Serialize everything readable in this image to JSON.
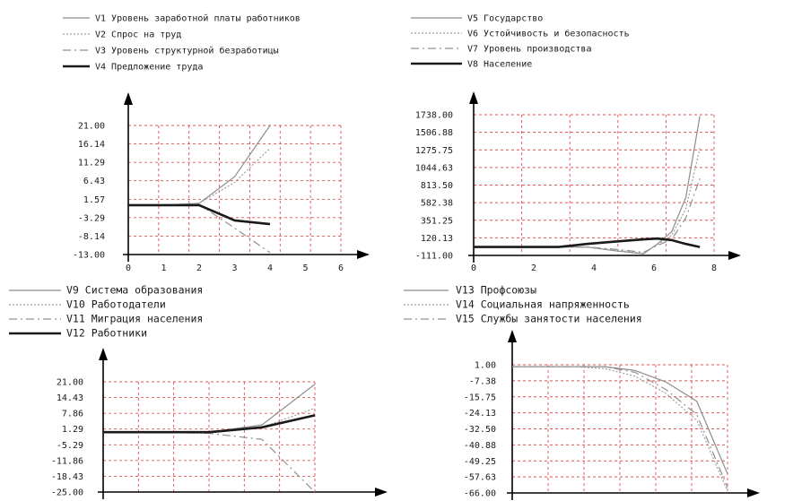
{
  "colors": {
    "grid": "#e05050",
    "axis": "#000000",
    "text": "#1a1a1a",
    "solid": "#8c8c8c",
    "dotted": "#a0a0a0",
    "dashdot": "#909090",
    "thick": "#1a1a1a"
  },
  "chart_data": [
    {
      "type": "line",
      "x": [
        0,
        1,
        2,
        3,
        4
      ],
      "xticks": [
        "0",
        "1",
        "2",
        "3",
        "4",
        "5",
        "6"
      ],
      "xlim": [
        0,
        6
      ],
      "yticks": [
        "21.00",
        "16.14",
        "11.29",
        "6.43",
        "1.57",
        "-3.29",
        "-8.14",
        "-13.00"
      ],
      "ylim": [
        -13,
        21
      ],
      "grid": true,
      "legend_placement": "top",
      "series": [
        {
          "name": "V1 Уровень заработной платы работников",
          "style": "solid",
          "values": [
            0,
            0,
            0.5,
            7.5,
            21
          ]
        },
        {
          "name": "V2 Спрос на труд",
          "style": "dotted",
          "values": [
            0,
            0,
            0.5,
            6,
            15
          ]
        },
        {
          "name": "V3 Уровень структурной безработицы",
          "style": "dashdot",
          "values": [
            0,
            0,
            0.2,
            -6,
            -12.5
          ]
        },
        {
          "name": "V4 Предложение труда",
          "style": "thick",
          "values": [
            0,
            0,
            0,
            -4,
            -5
          ]
        }
      ]
    },
    {
      "type": "line",
      "x": [
        0,
        1,
        2,
        3,
        4,
        5,
        6,
        6.5,
        7,
        7.5,
        8
      ],
      "xticks": [
        "0",
        "2",
        "4",
        "6",
        "8"
      ],
      "xlim": [
        0,
        8.5
      ],
      "yticks": [
        "1738.00",
        "1506.88",
        "1275.75",
        "1044.63",
        "813.50",
        "582.38",
        "351.25",
        "120.13",
        "-111.00"
      ],
      "ylim": [
        -111,
        1738
      ],
      "grid": true,
      "legend_placement": "top",
      "series": [
        {
          "name": "V5 Государство",
          "style": "solid",
          "values": [
            0,
            0,
            0,
            0,
            0,
            -50,
            -90,
            40,
            200,
            650,
            1720
          ]
        },
        {
          "name": "V6 Устойчивость и безопасность",
          "style": "dotted",
          "values": [
            0,
            0,
            0,
            0,
            0,
            -40,
            -80,
            30,
            150,
            500,
            1300
          ]
        },
        {
          "name": "V7 Уровень производства",
          "style": "dashdot",
          "values": [
            0,
            0,
            0,
            0,
            0,
            -30,
            -70,
            20,
            100,
            380,
            900
          ]
        },
        {
          "name": "V8 Население",
          "style": "thick",
          "values": [
            0,
            0,
            0,
            0,
            40,
            70,
            100,
            110,
            90,
            40,
            0
          ]
        }
      ]
    },
    {
      "type": "line",
      "x": [
        0,
        1,
        2,
        3,
        4
      ],
      "xticks": [],
      "xlim": [
        0,
        4
      ],
      "yticks": [
        "21.00",
        "14.43",
        "7.86",
        "1.29",
        "-5.29",
        "-11.86",
        "-18.43",
        "-25.00"
      ],
      "ylim": [
        -25,
        21
      ],
      "grid": true,
      "legend_placement": "top",
      "series": [
        {
          "name": "V9 Система образования",
          "style": "solid",
          "values": [
            0,
            0,
            0,
            3,
            20
          ]
        },
        {
          "name": "V10 Работодатели",
          "style": "dotted",
          "values": [
            0,
            0,
            -0.5,
            2,
            10
          ]
        },
        {
          "name": "V11 Миграция населения",
          "style": "dashdot",
          "values": [
            0,
            0,
            -0.5,
            -3,
            -25
          ]
        },
        {
          "name": "V12 Работники",
          "style": "thick",
          "values": [
            0,
            0,
            0,
            2,
            7
          ]
        }
      ]
    },
    {
      "type": "line",
      "x": [
        0,
        1,
        2,
        3,
        4,
        5,
        6,
        7
      ],
      "xticks": [],
      "xlim": [
        0,
        7
      ],
      "yticks": [
        "1.00",
        "-7.38",
        "-15.75",
        "-24.13",
        "-32.50",
        "-40.88",
        "-49.25",
        "-57.63",
        "-66.00"
      ],
      "ylim": [
        -66,
        1
      ],
      "grid": true,
      "legend_placement": "top",
      "series": [
        {
          "name": "V13 Профсоюзы",
          "style": "solid",
          "values": [
            0,
            0,
            0,
            0,
            -2,
            -8,
            -18,
            -56
          ]
        },
        {
          "name": "V14 Социальная напряженность",
          "style": "dotted",
          "values": [
            0,
            0,
            0,
            -1,
            -5,
            -14,
            -28,
            -65
          ]
        },
        {
          "name": "V15 Службы занятости населения",
          "style": "dashdot",
          "values": [
            0,
            0,
            0,
            0,
            -3,
            -12,
            -25,
            -63
          ]
        }
      ]
    }
  ]
}
